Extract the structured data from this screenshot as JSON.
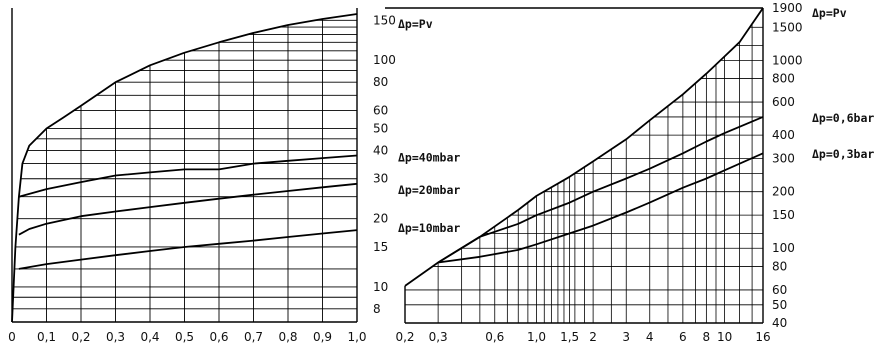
{
  "chart_data": [
    {
      "type": "line",
      "title": "",
      "xlabel": "",
      "ylabel": "",
      "x_scale": "linear",
      "y_scale": "log",
      "xlim": [
        0,
        1.0
      ],
      "ylim": [
        7,
        170
      ],
      "grid": true,
      "x_ticks": [
        "0",
        "0,1",
        "0,2",
        "0,3",
        "0,4",
        "0,5",
        "0,6",
        "0,7",
        "0,8",
        "0,9",
        "1,0"
      ],
      "x_tick_values": [
        0,
        0.1,
        0.2,
        0.3,
        0.4,
        0.5,
        0.6,
        0.7,
        0.8,
        0.9,
        1.0
      ],
      "y_ticks": [
        "8",
        "10",
        "15",
        "20",
        "30",
        "40",
        "50",
        "60",
        "80",
        "100",
        "150"
      ],
      "y_tick_values": [
        8,
        10,
        15,
        20,
        30,
        40,
        50,
        60,
        80,
        100,
        150
      ],
      "series": [
        {
          "name": "Δp=Pv",
          "x": [
            0.0,
            0.01,
            0.02,
            0.03,
            0.05,
            0.1,
            0.15,
            0.2,
            0.3,
            0.4,
            0.5,
            0.6,
            0.7,
            0.8,
            0.9,
            1.0
          ],
          "y": [
            7,
            15,
            25,
            35,
            42,
            50,
            56,
            63,
            80,
            95,
            108,
            120,
            132,
            143,
            152,
            160
          ]
        },
        {
          "name": "Δp=40mbar",
          "x": [
            0.02,
            0.1,
            0.2,
            0.3,
            0.4,
            0.5,
            0.6,
            0.7,
            0.8,
            0.9,
            1.0
          ],
          "y": [
            25,
            27,
            29,
            31,
            32,
            33,
            33,
            35,
            36,
            37,
            38
          ]
        },
        {
          "name": "Δp=20mbar",
          "x": [
            0.02,
            0.05,
            0.1,
            0.2,
            0.3,
            0.4,
            0.5,
            0.6,
            0.7,
            0.8,
            0.9,
            1.0
          ],
          "y": [
            17,
            18,
            19,
            20.5,
            21.5,
            22.5,
            23.5,
            24.5,
            25.5,
            26.5,
            27.5,
            28.5
          ]
        },
        {
          "name": "Δp=10mbar",
          "x": [
            0.02,
            0.1,
            0.2,
            0.3,
            0.4,
            0.5,
            0.6,
            0.7,
            0.8,
            0.9,
            1.0
          ],
          "y": [
            12,
            12.6,
            13.2,
            13.8,
            14.4,
            15,
            15.5,
            16,
            16.6,
            17.2,
            17.8
          ]
        }
      ],
      "curve_labels": [
        {
          "text": "Δp=Pv",
          "series": "Δp=Pv"
        },
        {
          "text": "Δp=40mbar",
          "series": "Δp=40mbar"
        },
        {
          "text": "Δp=20mbar",
          "series": "Δp=20mbar"
        },
        {
          "text": "Δp=10mbar",
          "series": "Δp=10mbar"
        }
      ]
    },
    {
      "type": "line",
      "title": "",
      "xlabel": "",
      "ylabel": "",
      "x_scale": "log",
      "y_scale": "log",
      "xlim": [
        0.2,
        16
      ],
      "ylim": [
        40,
        1900
      ],
      "grid": true,
      "x_ticks": [
        "0,2",
        "0,3",
        "0,6",
        "1,0",
        "1,5",
        "2",
        "3",
        "4",
        "6",
        "8",
        "10",
        "16"
      ],
      "x_tick_values": [
        0.2,
        0.3,
        0.6,
        1.0,
        1.5,
        2,
        3,
        4,
        6,
        8,
        10,
        16
      ],
      "y_ticks": [
        "40",
        "50",
        "60",
        "80",
        "100",
        "150",
        "200",
        "300",
        "400",
        "600",
        "800",
        "1000",
        "1500",
        "1900"
      ],
      "y_tick_values": [
        40,
        50,
        60,
        80,
        100,
        150,
        200,
        300,
        400,
        600,
        800,
        1000,
        1500,
        1900
      ],
      "series": [
        {
          "name": "Δp=Pv",
          "x": [
            0.2,
            0.3,
            0.5,
            0.8,
            1.0,
            1.5,
            2,
            3,
            4,
            6,
            8,
            10,
            12,
            16
          ],
          "y": [
            63,
            84,
            115,
            160,
            190,
            240,
            290,
            380,
            480,
            660,
            850,
            1050,
            1250,
            1900
          ]
        },
        {
          "name": "Δp=0,6bar",
          "x": [
            0.3,
            0.5,
            0.8,
            1.0,
            1.5,
            2,
            3,
            4,
            6,
            8,
            10,
            16
          ],
          "y": [
            84,
            115,
            135,
            150,
            175,
            200,
            235,
            265,
            320,
            370,
            410,
            500
          ]
        },
        {
          "name": "Δp=0,3bar",
          "x": [
            0.3,
            0.5,
            0.8,
            1.0,
            1.5,
            2,
            3,
            4,
            6,
            8,
            10,
            16
          ],
          "y": [
            84,
            90,
            98,
            105,
            120,
            132,
            155,
            175,
            210,
            235,
            260,
            320
          ]
        }
      ],
      "curve_labels": [
        {
          "text": "Δp=Pv",
          "series": "Δp=Pv"
        },
        {
          "text": "Δp=0,6bar",
          "series": "Δp=0,6bar"
        },
        {
          "text": "Δp=0,3bar",
          "series": "Δp=0,3bar"
        }
      ]
    }
  ]
}
